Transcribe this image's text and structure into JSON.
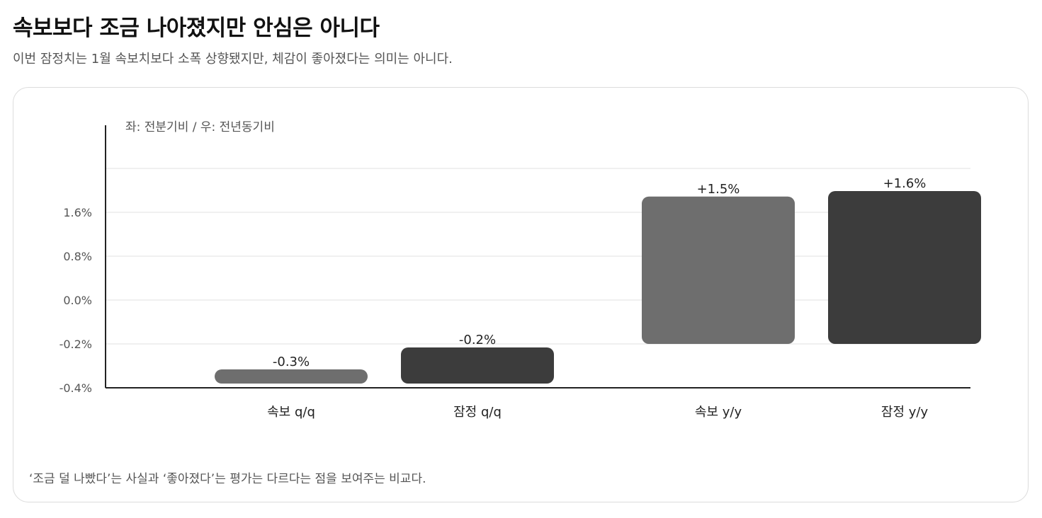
{
  "header": {
    "title": "속보보다 조금 나아졌지만 안심은 아니다",
    "subtitle": "이번 잠정치는 1월 속보치보다 소폭 상향됐지만, 체감이 좋아졌다는 의미는 아니다."
  },
  "chart_data": {
    "type": "bar",
    "axis_note": "좌: 전분기비 / 우: 전년동기비",
    "categories": [
      "속보 q/q",
      "잠정 q/q",
      "속보 y/y",
      "잠정 y/y"
    ],
    "values": [
      -0.3,
      -0.2,
      1.5,
      1.6
    ],
    "value_labels": [
      "-0.3%",
      "-0.2%",
      "+1.5%",
      "+1.6%"
    ],
    "y_ticks": [
      -0.4,
      -0.2,
      0.0,
      0.8,
      1.6
    ],
    "y_tick_labels": [
      "-0.4%",
      "-0.2%",
      "0.0%",
      "0.8%",
      "1.6%"
    ],
    "ylim": [
      -0.4,
      2.4
    ],
    "grid": true,
    "bar_colors": [
      "#6e6e6e",
      "#3c3c3c",
      "#6e6e6e",
      "#3c3c3c"
    ]
  },
  "footnote": "‘조금 덜 나빴다’는 사실과 ‘좋아졌다’는 평가는 다르다는 점을 보여주는 비교다."
}
